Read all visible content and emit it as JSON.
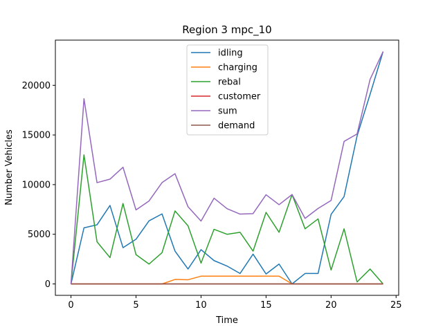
{
  "chart_data": {
    "type": "line",
    "title": "Region 3 mpc_10",
    "xlabel": "Time",
    "ylabel": "Number Vehicles",
    "xlim": [
      -1.2,
      25.2
    ],
    "ylim": [
      -1150,
      24550
    ],
    "xticks": [
      0,
      5,
      10,
      15,
      20,
      25
    ],
    "yticks": [
      0,
      5000,
      10000,
      15000,
      20000
    ],
    "grid": false,
    "legend_position": "upper center",
    "x": [
      0,
      1,
      2,
      3,
      4,
      5,
      6,
      7,
      8,
      9,
      10,
      11,
      12,
      13,
      14,
      15,
      16,
      17,
      18,
      19,
      20,
      21,
      22,
      23,
      24
    ],
    "series": [
      {
        "name": "idling",
        "color": "#1f77b4",
        "values": [
          0,
          5650,
          5950,
          7900,
          3650,
          4500,
          6350,
          7050,
          3300,
          1500,
          3450,
          2350,
          1800,
          1050,
          3000,
          1000,
          2000,
          0,
          1050,
          1050,
          7000,
          8800,
          14900,
          19100,
          23400
        ]
      },
      {
        "name": "charging",
        "color": "#ff7f0e",
        "values": [
          0,
          0,
          0,
          0,
          0,
          0,
          0,
          0,
          450,
          420,
          780,
          780,
          780,
          780,
          780,
          780,
          780,
          0,
          0,
          0,
          0,
          0,
          0,
          0,
          0
        ]
      },
      {
        "name": "rebal",
        "color": "#2ca02c",
        "values": [
          0,
          13000,
          4250,
          2650,
          8100,
          2950,
          2000,
          3150,
          7350,
          5850,
          2100,
          5500,
          5000,
          5200,
          3300,
          7200,
          5200,
          9000,
          5550,
          6550,
          1400,
          5550,
          200,
          1500,
          0
        ]
      },
      {
        "name": "customer",
        "color": "#d62728",
        "values": [
          0,
          0,
          0,
          0,
          0,
          0,
          0,
          0,
          0,
          0,
          0,
          0,
          0,
          0,
          0,
          0,
          0,
          0,
          0,
          0,
          0,
          0,
          0,
          0,
          0
        ]
      },
      {
        "name": "sum",
        "color": "#9467bd",
        "values": [
          0,
          18650,
          10200,
          10550,
          11750,
          7450,
          8350,
          10200,
          11100,
          7770,
          6330,
          8630,
          7580,
          7030,
          7080,
          8980,
          7980,
          9000,
          6600,
          7600,
          8400,
          14350,
          15100,
          20600,
          23400
        ]
      },
      {
        "name": "demand",
        "color": "#8c564b",
        "values": [
          0,
          0,
          0,
          0,
          0,
          0,
          0,
          0,
          0,
          0,
          0,
          0,
          0,
          0,
          0,
          0,
          0,
          0,
          0,
          0,
          0,
          0,
          0,
          0,
          0
        ]
      }
    ]
  }
}
